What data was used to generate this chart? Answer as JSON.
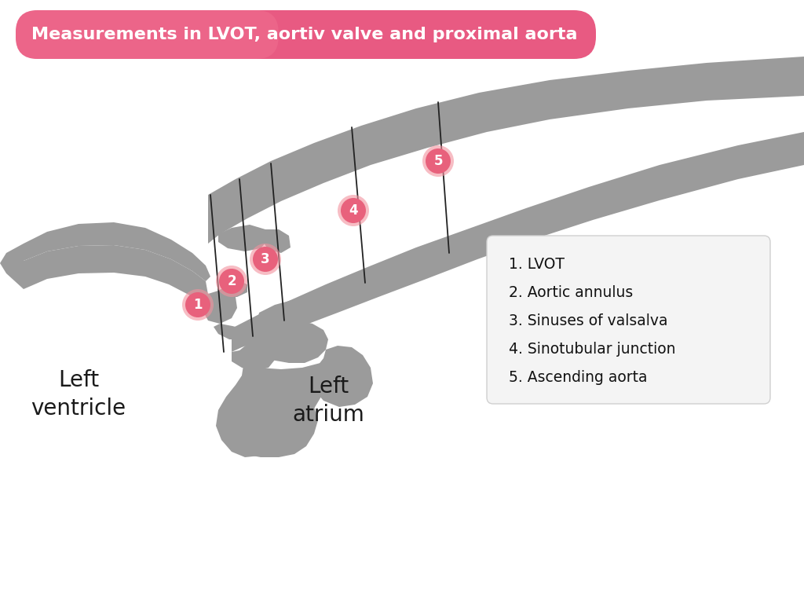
{
  "title": "Measurements in LVOT, aortiv valve and proximal aorta",
  "title_bg_color": "#E85A82",
  "title_text_color": "#ffffff",
  "anatomy_color": "#9B9B9B",
  "line_color": "#222222",
  "background_color": "#ffffff",
  "legend_items": [
    "1. LVOT",
    "2. Aortic annulus",
    "3. Sinuses of valsalva",
    "4. Sinotubular junction",
    "5. Ascending aorta"
  ],
  "circle_color": "#E8617C",
  "circle_text_color": "#ffffff",
  "left_ventricle_label": "Left\nventricle",
  "left_atrium_label": "Left\natrium"
}
